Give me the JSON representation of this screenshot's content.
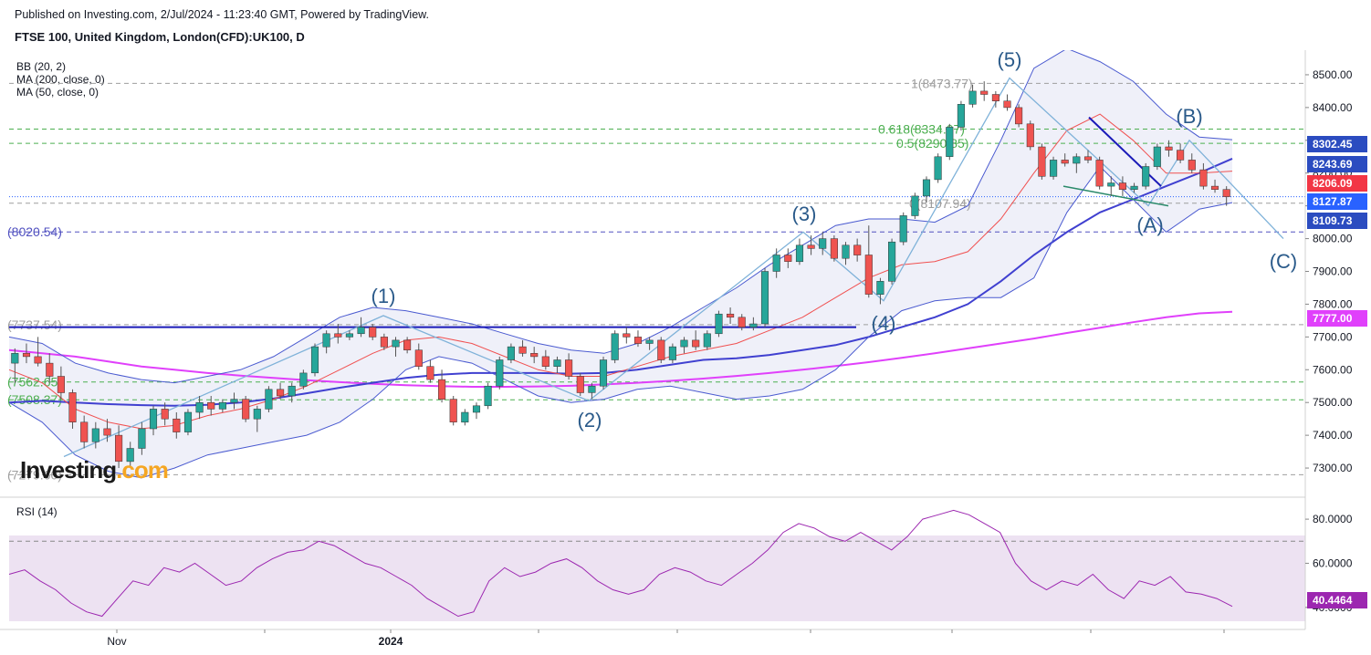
{
  "header": {
    "published": "Published on Investing.com, 2/Jul/2024 - 11:23:40 GMT, Powered by TradingView.",
    "symbol": "FTSE 100, United Kingdom, London(CFD):UK100, D"
  },
  "indicators": [
    "BB (20, 2)",
    "MA (200, close, 0)",
    "MA (50, close, 0)"
  ],
  "logo": {
    "text": "Investing",
    "suffix": ".com"
  },
  "rsi_label": "RSI (14)",
  "chart_data": [
    {
      "type": "candlestick",
      "title": "FTSE 100, United Kingdom, London(CFD):UK100, D",
      "y_ticks": [
        7300,
        7400,
        7500,
        7600,
        7700,
        7800,
        7900,
        8000,
        8100,
        8200,
        8300,
        8400,
        8500
      ],
      "ylim": [
        7225,
        8575
      ],
      "x_labels": [
        "Nov",
        "2024"
      ],
      "candles": [
        [
          7620,
          7665,
          7560,
          7650
        ],
        [
          7650,
          7680,
          7620,
          7640
        ],
        [
          7640,
          7700,
          7610,
          7620
        ],
        [
          7620,
          7650,
          7560,
          7580
        ],
        [
          7580,
          7610,
          7510,
          7530
        ],
        [
          7530,
          7540,
          7420,
          7440
        ],
        [
          7440,
          7460,
          7360,
          7380
        ],
        [
          7380,
          7440,
          7360,
          7420
        ],
        [
          7420,
          7450,
          7380,
          7400
        ],
        [
          7400,
          7430,
          7300,
          7320
        ],
        [
          7320,
          7380,
          7300,
          7360
        ],
        [
          7360,
          7440,
          7340,
          7420
        ],
        [
          7420,
          7490,
          7400,
          7480
        ],
        [
          7480,
          7500,
          7430,
          7450
        ],
        [
          7450,
          7470,
          7390,
          7410
        ],
        [
          7410,
          7480,
          7400,
          7470
        ],
        [
          7470,
          7520,
          7450,
          7500
        ],
        [
          7500,
          7520,
          7460,
          7480
        ],
        [
          7480,
          7510,
          7470,
          7500
        ],
        [
          7500,
          7530,
          7480,
          7510
        ],
        [
          7510,
          7520,
          7440,
          7450
        ],
        [
          7450,
          7490,
          7410,
          7480
        ],
        [
          7480,
          7550,
          7470,
          7540
        ],
        [
          7540,
          7560,
          7510,
          7520
        ],
        [
          7520,
          7560,
          7500,
          7550
        ],
        [
          7550,
          7600,
          7540,
          7590
        ],
        [
          7590,
          7680,
          7580,
          7670
        ],
        [
          7670,
          7720,
          7650,
          7710
        ],
        [
          7710,
          7740,
          7680,
          7700
        ],
        [
          7700,
          7720,
          7690,
          7710
        ],
        [
          7710,
          7760,
          7700,
          7730
        ],
        [
          7730,
          7740,
          7690,
          7700
        ],
        [
          7700,
          7710,
          7660,
          7670
        ],
        [
          7670,
          7700,
          7640,
          7690
        ],
        [
          7690,
          7700,
          7650,
          7660
        ],
        [
          7660,
          7680,
          7600,
          7610
        ],
        [
          7610,
          7630,
          7560,
          7570
        ],
        [
          7570,
          7600,
          7500,
          7510
        ],
        [
          7510,
          7520,
          7430,
          7440
        ],
        [
          7440,
          7480,
          7430,
          7470
        ],
        [
          7470,
          7500,
          7450,
          7490
        ],
        [
          7490,
          7560,
          7480,
          7550
        ],
        [
          7550,
          7640,
          7540,
          7630
        ],
        [
          7630,
          7680,
          7620,
          7670
        ],
        [
          7670,
          7690,
          7640,
          7650
        ],
        [
          7650,
          7670,
          7620,
          7640
        ],
        [
          7640,
          7660,
          7600,
          7610
        ],
        [
          7610,
          7640,
          7590,
          7630
        ],
        [
          7630,
          7650,
          7570,
          7580
        ],
        [
          7580,
          7590,
          7520,
          7530
        ],
        [
          7530,
          7560,
          7510,
          7550
        ],
        [
          7550,
          7640,
          7540,
          7630
        ],
        [
          7630,
          7720,
          7620,
          7710
        ],
        [
          7710,
          7730,
          7680,
          7700
        ],
        [
          7700,
          7720,
          7670,
          7680
        ],
        [
          7680,
          7700,
          7660,
          7690
        ],
        [
          7690,
          7700,
          7620,
          7630
        ],
        [
          7630,
          7680,
          7620,
          7670
        ],
        [
          7670,
          7700,
          7650,
          7690
        ],
        [
          7690,
          7720,
          7660,
          7670
        ],
        [
          7670,
          7720,
          7660,
          7710
        ],
        [
          7710,
          7780,
          7700,
          7770
        ],
        [
          7770,
          7790,
          7740,
          7760
        ],
        [
          7760,
          7770,
          7720,
          7730
        ],
        [
          7730,
          7760,
          7720,
          7740
        ],
        [
          7740,
          7910,
          7730,
          7900
        ],
        [
          7900,
          7970,
          7880,
          7950
        ],
        [
          7950,
          7970,
          7910,
          7930
        ],
        [
          7930,
          8000,
          7920,
          7980
        ],
        [
          7980,
          8010,
          7950,
          7970
        ],
        [
          7970,
          8020,
          7950,
          8000
        ],
        [
          8000,
          8010,
          7930,
          7940
        ],
        [
          7940,
          7990,
          7920,
          7980
        ],
        [
          7980,
          8000,
          7930,
          7950
        ],
        [
          7950,
          8040,
          7820,
          7830
        ],
        [
          7830,
          7880,
          7800,
          7870
        ],
        [
          7870,
          8000,
          7860,
          7990
        ],
        [
          7990,
          8080,
          7980,
          8070
        ],
        [
          8070,
          8140,
          8060,
          8130
        ],
        [
          8130,
          8190,
          8110,
          8180
        ],
        [
          8180,
          8260,
          8170,
          8250
        ],
        [
          8250,
          8350,
          8240,
          8340
        ],
        [
          8340,
          8420,
          8330,
          8410
        ],
        [
          8410,
          8470,
          8400,
          8450
        ],
        [
          8450,
          8480,
          8420,
          8440
        ],
        [
          8440,
          8450,
          8400,
          8420
        ],
        [
          8420,
          8440,
          8390,
          8400
        ],
        [
          8400,
          8410,
          8340,
          8350
        ],
        [
          8350,
          8360,
          8270,
          8280
        ],
        [
          8280,
          8290,
          8180,
          8190
        ],
        [
          8190,
          8250,
          8180,
          8240
        ],
        [
          8240,
          8260,
          8220,
          8230
        ],
        [
          8230,
          8260,
          8200,
          8250
        ],
        [
          8250,
          8270,
          8230,
          8240
        ],
        [
          8240,
          8250,
          8150,
          8160
        ],
        [
          8160,
          8190,
          8130,
          8170
        ],
        [
          8170,
          8190,
          8130,
          8150
        ],
        [
          8150,
          8170,
          8140,
          8160
        ],
        [
          8160,
          8230,
          8150,
          8220
        ],
        [
          8220,
          8290,
          8210,
          8280
        ],
        [
          8280,
          8300,
          8250,
          8270
        ],
        [
          8270,
          8290,
          8230,
          8240
        ],
        [
          8240,
          8260,
          8200,
          8210
        ],
        [
          8210,
          8230,
          8150,
          8160
        ],
        [
          8160,
          8180,
          8140,
          8150
        ],
        [
          8150,
          8160,
          8100,
          8128
        ]
      ],
      "series": [
        {
          "name": "MA (200, close, 0)",
          "color": "#e040fb",
          "values": [
            7660,
            7650,
            7640,
            7625,
            7610,
            7600,
            7590,
            7582,
            7575,
            7568,
            7562,
            7557,
            7553,
            7550,
            7548,
            7548,
            7549,
            7551,
            7555,
            7560,
            7566,
            7573,
            7581,
            7590,
            7600,
            7611,
            7623,
            7636,
            7650,
            7665,
            7680,
            7695,
            7712,
            7728,
            7745,
            7760,
            7772,
            7777
          ]
        },
        {
          "name": "MA (50, close, 0)",
          "color": "#4040d0",
          "values": [
            7500,
            7505,
            7500,
            7495,
            7492,
            7490,
            7493,
            7500,
            7512,
            7528,
            7545,
            7560,
            7575,
            7585,
            7590,
            7590,
            7590,
            7588,
            7590,
            7600,
            7615,
            7630,
            7635,
            7645,
            7660,
            7675,
            7700,
            7730,
            7760,
            7800,
            7870,
            7950,
            8020,
            8080,
            8120,
            8160,
            8200,
            8244
          ]
        },
        {
          "name": "BB basis",
          "color": "#f05050",
          "values": [
            7600,
            7560,
            7480,
            7440,
            7420,
            7430,
            7460,
            7480,
            7510,
            7550,
            7600,
            7650,
            7690,
            7700,
            7680,
            7640,
            7600,
            7580,
            7580,
            7610,
            7640,
            7660,
            7680,
            7720,
            7760,
            7820,
            7880,
            7920,
            7930,
            7960,
            8060,
            8200,
            8330,
            8380,
            8300,
            8200,
            8200,
            8206
          ]
        },
        {
          "name": "BB upper",
          "color": "#4a5ad0",
          "values": [
            7700,
            7680,
            7620,
            7590,
            7570,
            7560,
            7580,
            7600,
            7640,
            7700,
            7760,
            7790,
            7780,
            7760,
            7740,
            7710,
            7680,
            7660,
            7650,
            7680,
            7730,
            7790,
            7850,
            7920,
            7980,
            8040,
            8060,
            8060,
            8050,
            8100,
            8300,
            8520,
            8580,
            8540,
            8480,
            8380,
            8310,
            8302
          ]
        },
        {
          "name": "BB lower",
          "color": "#4a5ad0",
          "values": [
            7500,
            7440,
            7340,
            7290,
            7270,
            7300,
            7340,
            7360,
            7380,
            7400,
            7440,
            7510,
            7600,
            7640,
            7620,
            7570,
            7520,
            7500,
            7510,
            7540,
            7550,
            7530,
            7510,
            7520,
            7540,
            7600,
            7700,
            7780,
            7810,
            7820,
            7820,
            7880,
            8080,
            8220,
            8120,
            8020,
            8090,
            8110
          ]
        }
      ],
      "levels": [
        {
          "label": "1(8473.77)",
          "value": 8473.77,
          "color": "#9e9e9e"
        },
        {
          "label": "0.618(8334.07)",
          "value": 8334.07,
          "color": "#4caf50"
        },
        {
          "label": "0.5(8290.85)",
          "value": 8290.85,
          "color": "#4caf50"
        },
        {
          "label": "0(8107.94)",
          "value": 8107.94,
          "color": "#9e9e9e"
        },
        {
          "label": "(8020.54)",
          "value": 8020.54,
          "color": "#5050c0"
        },
        {
          "label": "(7737.54)",
          "value": 7737.54,
          "color": "#9e9e9e"
        },
        {
          "label": "(7562.65)",
          "value": 7562.65,
          "color": "#4caf50"
        },
        {
          "label": "(7508.37)",
          "value": 7508.37,
          "color": "#4caf50"
        },
        {
          "label": "(7279.60)",
          "value": 7279.6,
          "color": "#9e9e9e"
        }
      ],
      "waves": [
        {
          "label": "(1)",
          "value": 7765
        },
        {
          "label": "(2)",
          "value": 7505
        },
        {
          "label": "(3)",
          "value": 8020
        },
        {
          "label": "(4)",
          "value": 7810
        },
        {
          "label": "(5)",
          "value": 8490
        },
        {
          "label": "(A)",
          "value": 8100
        },
        {
          "label": "(B)",
          "value": 8300
        },
        {
          "label": "(C)",
          "value": 8000
        }
      ],
      "price_badges": [
        {
          "label": "8302.45",
          "value": 8302.45,
          "color": "#2b4cc0"
        },
        {
          "label": "8243.69",
          "value": 8243.69,
          "color": "#2b4cc0"
        },
        {
          "label": "8206.09",
          "value": 8206.09,
          "color": "#f23645"
        },
        {
          "label": "8127.87",
          "value": 8127.87,
          "color": "#2962ff"
        },
        {
          "label": "8109.73",
          "value": 8109.73,
          "color": "#2b4cc0"
        },
        {
          "label": "7777.00",
          "value": 7777.0,
          "color": "#e040fb"
        }
      ]
    },
    {
      "type": "line",
      "title": "RSI (14)",
      "y_ticks": [
        40,
        60,
        80
      ],
      "ylim": [
        30,
        85
      ],
      "overbought": 70,
      "oversold": 30,
      "series": [
        {
          "name": "RSI (14)",
          "color": "#9c27b0",
          "values": [
            55,
            57,
            52,
            48,
            42,
            38,
            36,
            44,
            52,
            50,
            58,
            56,
            60,
            55,
            50,
            52,
            58,
            62,
            65,
            66,
            70,
            68,
            64,
            60,
            58,
            54,
            50,
            44,
            40,
            36,
            38,
            52,
            58,
            54,
            56,
            60,
            62,
            58,
            52,
            48,
            46,
            48,
            55,
            58,
            56,
            52,
            50,
            55,
            60,
            66,
            74,
            78,
            76,
            72,
            70,
            74,
            70,
            66,
            72,
            80,
            82,
            84,
            82,
            78,
            74,
            60,
            52,
            48,
            52,
            50,
            55,
            48,
            44,
            52,
            50,
            54,
            47,
            46,
            44,
            40.4464
          ]
        }
      ],
      "last_badge": {
        "label": "40.4464",
        "color": "#9c27b0"
      }
    }
  ]
}
